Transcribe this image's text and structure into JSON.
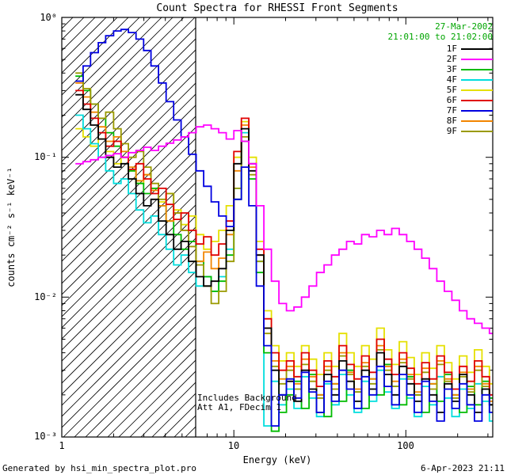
{
  "chart": {
    "title": "Count Spectra for RHESSI Front Segments",
    "obs_date": "27-Mar-2002",
    "obs_time_range": "21:01:00 to 21:02:00",
    "time_color": "#00a500",
    "xlabel": "Energy (keV)",
    "ylabel": "counts cm⁻² s⁻¹ keV⁻¹",
    "x_tick_labels": [
      "1",
      "10",
      "100"
    ],
    "y_tick_labels": [
      "10⁰",
      "10⁻¹",
      "10⁻²",
      "10⁻³"
    ],
    "annotations": [
      "Includes Background",
      "Att A1, FDecim 1"
    ],
    "footer_left": "Generated by hsi_min_spectra_plot.pro",
    "footer_right": "6-Apr-2023 21:11"
  },
  "chart_data": {
    "type": "line",
    "x_scale": "log",
    "y_scale": "log",
    "x_range_kev": [
      1,
      320
    ],
    "y_range": [
      0.001,
      1
    ],
    "hatched_region_kev": [
      1,
      6
    ],
    "grid": false,
    "legend_position": "top-right",
    "energies_kev": [
      1.2,
      1.33,
      1.47,
      1.63,
      1.8,
      2.0,
      2.21,
      2.44,
      2.7,
      2.99,
      3.3,
      3.65,
      4.04,
      4.47,
      4.94,
      5.46,
      6.04,
      6.68,
      7.39,
      8.17,
      9.04,
      10.0,
      11.06,
      12.23,
      13.52,
      14.96,
      16.54,
      18.29,
      20.23,
      22.37,
      24.74,
      27.36,
      30.26,
      33.46,
      37.0,
      40.92,
      45.25,
      50.04,
      55.34,
      61.2,
      67.68,
      74.84,
      82.77,
      91.53,
      101.2,
      111.9,
      123.8,
      136.9,
      151.4,
      167.4,
      185.1,
      204.7,
      226.4,
      250.4,
      276.9,
      306.2
    ],
    "series": [
      {
        "name": "1F",
        "color": "#000000",
        "values": [
          0.28,
          0.22,
          0.17,
          0.135,
          0.1,
          0.085,
          0.09,
          0.07,
          0.055,
          0.045,
          0.05,
          0.035,
          0.028,
          0.022,
          0.025,
          0.018,
          0.014,
          0.012,
          0.013,
          0.016,
          0.03,
          0.09,
          0.16,
          0.08,
          0.02,
          0.006,
          0.003,
          0.002,
          0.0025,
          0.0018,
          0.003,
          0.0022,
          0.0015,
          0.0028,
          0.002,
          0.0035,
          0.0025,
          0.0018,
          0.003,
          0.0022,
          0.004,
          0.0028,
          0.002,
          0.0032,
          0.0024,
          0.0018,
          0.0026,
          0.002,
          0.0015,
          0.0024,
          0.0018,
          0.0028,
          0.002,
          0.0015,
          0.0022,
          0.0017
        ]
      },
      {
        "name": "2F",
        "color": "#ff00ff",
        "values": [
          0.09,
          0.093,
          0.096,
          0.1,
          0.103,
          0.106,
          0.1,
          0.108,
          0.112,
          0.118,
          0.112,
          0.12,
          0.126,
          0.133,
          0.14,
          0.15,
          0.165,
          0.17,
          0.16,
          0.15,
          0.135,
          0.155,
          0.13,
          0.09,
          0.045,
          0.022,
          0.013,
          0.009,
          0.008,
          0.0085,
          0.01,
          0.012,
          0.015,
          0.017,
          0.02,
          0.022,
          0.025,
          0.024,
          0.028,
          0.027,
          0.03,
          0.028,
          0.031,
          0.028,
          0.025,
          0.022,
          0.019,
          0.016,
          0.013,
          0.011,
          0.0095,
          0.008,
          0.007,
          0.0065,
          0.006,
          0.0055
        ]
      },
      {
        "name": "3F",
        "color": "#00bb00",
        "values": [
          0.38,
          0.3,
          0.24,
          0.19,
          0.15,
          0.12,
          0.1,
          0.08,
          0.065,
          0.055,
          0.06,
          0.045,
          0.035,
          0.028,
          0.022,
          0.025,
          0.018,
          0.014,
          0.011,
          0.013,
          0.02,
          0.05,
          0.13,
          0.07,
          0.015,
          0.004,
          0.0011,
          0.0015,
          0.002,
          0.0025,
          0.0016,
          0.0028,
          0.002,
          0.0014,
          0.0024,
          0.0018,
          0.003,
          0.0021,
          0.0016,
          0.0026,
          0.002,
          0.0033,
          0.0023,
          0.0017,
          0.0027,
          0.002,
          0.0015,
          0.0024,
          0.0018,
          0.0028,
          0.002,
          0.0015,
          0.0023,
          0.0017,
          0.0025,
          0.0019
        ]
      },
      {
        "name": "4F",
        "color": "#00dddd",
        "values": [
          0.2,
          0.16,
          0.125,
          0.1,
          0.08,
          0.065,
          0.07,
          0.055,
          0.042,
          0.034,
          0.038,
          0.028,
          0.022,
          0.017,
          0.02,
          0.015,
          0.012,
          0.014,
          0.011,
          0.014,
          0.022,
          0.06,
          0.15,
          0.09,
          0.018,
          0.0012,
          0.0025,
          0.0017,
          0.0022,
          0.0016,
          0.0027,
          0.0019,
          0.0014,
          0.0024,
          0.0017,
          0.0028,
          0.002,
          0.0015,
          0.0025,
          0.0018,
          0.003,
          0.0021,
          0.0016,
          0.0026,
          0.0019,
          0.0014,
          0.0023,
          0.0017,
          0.0027,
          0.0019,
          0.0014,
          0.0022,
          0.0016,
          0.0024,
          0.0018,
          0.0013
        ]
      },
      {
        "name": "5F",
        "color": "#e5e000",
        "values": [
          0.16,
          0.14,
          0.12,
          0.135,
          0.11,
          0.09,
          0.1,
          0.08,
          0.065,
          0.075,
          0.06,
          0.048,
          0.055,
          0.042,
          0.033,
          0.038,
          0.028,
          0.022,
          0.025,
          0.03,
          0.045,
          0.1,
          0.18,
          0.1,
          0.025,
          0.008,
          0.0045,
          0.0035,
          0.004,
          0.0032,
          0.0045,
          0.0036,
          0.0028,
          0.004,
          0.0032,
          0.0055,
          0.004,
          0.0032,
          0.0045,
          0.0036,
          0.006,
          0.0042,
          0.0033,
          0.0048,
          0.0037,
          0.0028,
          0.004,
          0.0031,
          0.0045,
          0.0034,
          0.0026,
          0.0038,
          0.0029,
          0.0042,
          0.0032,
          0.0024
        ]
      },
      {
        "name": "6F",
        "color": "#e00000",
        "values": [
          0.3,
          0.24,
          0.19,
          0.15,
          0.12,
          0.13,
          0.1,
          0.082,
          0.09,
          0.07,
          0.055,
          0.06,
          0.046,
          0.036,
          0.04,
          0.03,
          0.024,
          0.027,
          0.02,
          0.024,
          0.035,
          0.11,
          0.19,
          0.09,
          0.022,
          0.007,
          0.004,
          0.003,
          0.0035,
          0.0027,
          0.004,
          0.003,
          0.0023,
          0.0035,
          0.0027,
          0.0045,
          0.0033,
          0.0026,
          0.0038,
          0.0029,
          0.005,
          0.0036,
          0.0028,
          0.004,
          0.0031,
          0.0024,
          0.0034,
          0.0026,
          0.0038,
          0.0029,
          0.0022,
          0.0032,
          0.0025,
          0.0035,
          0.0027,
          0.002
        ]
      },
      {
        "name": "7F",
        "color": "#0000e0",
        "values": [
          0.35,
          0.45,
          0.56,
          0.66,
          0.74,
          0.8,
          0.82,
          0.78,
          0.7,
          0.58,
          0.45,
          0.34,
          0.25,
          0.185,
          0.14,
          0.105,
          0.08,
          0.062,
          0.048,
          0.038,
          0.032,
          0.05,
          0.085,
          0.045,
          0.012,
          0.0045,
          0.0012,
          0.002,
          0.0026,
          0.0019,
          0.0029,
          0.0021,
          0.0015,
          0.0025,
          0.0018,
          0.003,
          0.0022,
          0.0016,
          0.0027,
          0.002,
          0.0032,
          0.0023,
          0.0017,
          0.0028,
          0.002,
          0.0015,
          0.0025,
          0.0018,
          0.0013,
          0.0022,
          0.0016,
          0.0024,
          0.0017,
          0.0013,
          0.002,
          0.0015
        ]
      },
      {
        "name": "8F",
        "color": "#f28500",
        "values": [
          0.34,
          0.27,
          0.21,
          0.165,
          0.13,
          0.14,
          0.11,
          0.085,
          0.068,
          0.075,
          0.058,
          0.045,
          0.035,
          0.04,
          0.03,
          0.023,
          0.018,
          0.021,
          0.016,
          0.019,
          0.028,
          0.08,
          0.17,
          0.085,
          0.02,
          0.006,
          0.0035,
          0.0026,
          0.0032,
          0.0024,
          0.0036,
          0.0027,
          0.002,
          0.0032,
          0.0024,
          0.004,
          0.0029,
          0.0022,
          0.0034,
          0.0026,
          0.0045,
          0.0032,
          0.0025,
          0.0036,
          0.0028,
          0.0021,
          0.0031,
          0.0024,
          0.0035,
          0.0026,
          0.002,
          0.0029,
          0.0022,
          0.0032,
          0.0024,
          0.0018
        ]
      },
      {
        "name": "9F",
        "color": "#9a9a00",
        "values": [
          0.4,
          0.31,
          0.24,
          0.19,
          0.21,
          0.16,
          0.125,
          0.1,
          0.11,
          0.085,
          0.065,
          0.05,
          0.055,
          0.04,
          0.03,
          0.023,
          0.017,
          0.012,
          0.009,
          0.011,
          0.018,
          0.06,
          0.14,
          0.075,
          0.018,
          0.0055,
          0.0032,
          0.0024,
          0.003,
          0.0022,
          0.0033,
          0.0025,
          0.0019,
          0.003,
          0.0022,
          0.0038,
          0.0028,
          0.0021,
          0.0032,
          0.0024,
          0.0042,
          0.003,
          0.0023,
          0.0034,
          0.0026,
          0.002,
          0.0029,
          0.0022,
          0.0033,
          0.0025,
          0.0019,
          0.0027,
          0.0021,
          0.003,
          0.0023,
          0.0017
        ]
      }
    ]
  }
}
